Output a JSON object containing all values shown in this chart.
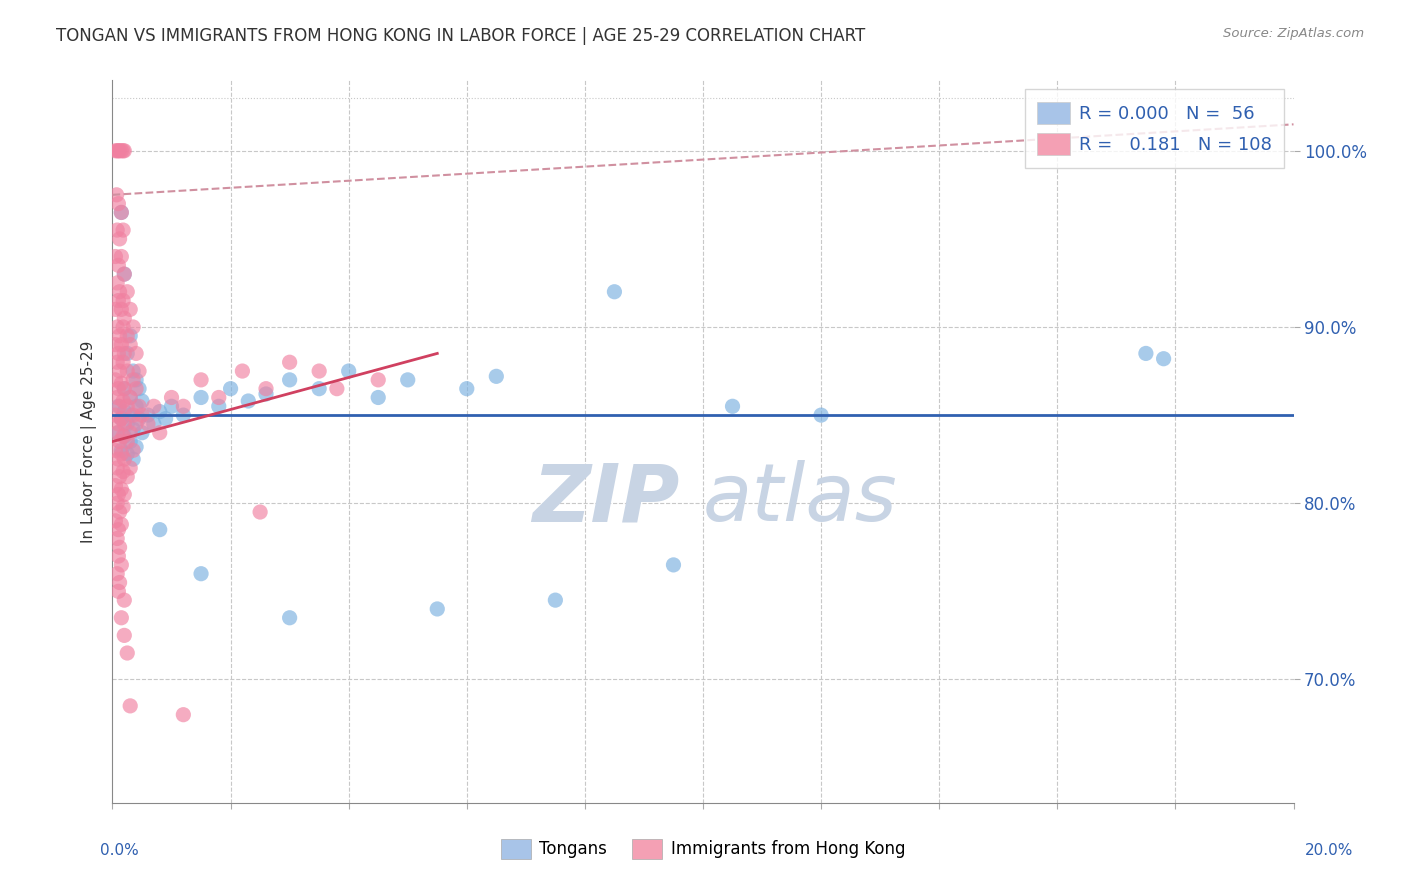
{
  "title": "TONGAN VS IMMIGRANTS FROM HONG KONG IN LABOR FORCE | AGE 25-29 CORRELATION CHART",
  "source": "Source: ZipAtlas.com",
  "ylabel": "In Labor Force | Age 25-29",
  "legend_entries": [
    {
      "label": "Tongans",
      "color": "#a8c4e8",
      "R": "0.000",
      "N": "56"
    },
    {
      "label": "Immigrants from Hong Kong",
      "color": "#f4a0b4",
      "R": "0.181",
      "N": "108"
    }
  ],
  "xmin": 0.0,
  "xmax": 20.0,
  "ymin": 63.0,
  "ymax": 104.0,
  "yticks": [
    70.0,
    80.0,
    90.0,
    100.0
  ],
  "ytick_labels": [
    "70.0%",
    "80.0%",
    "90.0%",
    "100.0%"
  ],
  "background_color": "#ffffff",
  "grid_color": "#c8c8c8",
  "scatter_blue_color": "#7ab0e0",
  "scatter_pink_color": "#f080a0",
  "trendline_blue_color": "#3060b0",
  "trendline_pink_color": "#d04060",
  "dashed_line_color": "#d090a0",
  "blue_trend_y": 85.0,
  "blue_trend_x0": 0.0,
  "blue_trend_x1": 20.0,
  "pink_trend_x0": 0.0,
  "pink_trend_y0": 83.5,
  "pink_trend_x1": 5.5,
  "pink_trend_y1": 88.5,
  "dash_x0": 0.0,
  "dash_y0": 97.5,
  "dash_x1": 20.0,
  "dash_y1": 101.5,
  "watermark_zip": "ZIP",
  "watermark_atlas": "atlas",
  "watermark_color": "#c8d4e4",
  "blue_points": [
    [
      0.15,
      96.5
    ],
    [
      0.2,
      93.0
    ],
    [
      0.3,
      89.5
    ],
    [
      0.25,
      88.5
    ],
    [
      0.35,
      87.5
    ],
    [
      0.2,
      86.5
    ],
    [
      0.3,
      86.0
    ],
    [
      0.4,
      87.0
    ],
    [
      0.45,
      86.5
    ],
    [
      0.1,
      85.5
    ],
    [
      0.2,
      85.2
    ],
    [
      0.3,
      85.0
    ],
    [
      0.4,
      85.5
    ],
    [
      0.5,
      85.8
    ],
    [
      0.15,
      84.8
    ],
    [
      0.25,
      84.5
    ],
    [
      0.35,
      84.2
    ],
    [
      0.45,
      84.8
    ],
    [
      0.1,
      84.0
    ],
    [
      0.2,
      83.8
    ],
    [
      0.3,
      83.5
    ],
    [
      0.4,
      83.2
    ],
    [
      0.5,
      84.0
    ],
    [
      0.15,
      83.0
    ],
    [
      0.25,
      82.8
    ],
    [
      0.35,
      82.5
    ],
    [
      0.6,
      85.0
    ],
    [
      0.7,
      84.5
    ],
    [
      0.8,
      85.2
    ],
    [
      0.9,
      84.8
    ],
    [
      1.0,
      85.5
    ],
    [
      1.2,
      85.0
    ],
    [
      1.5,
      86.0
    ],
    [
      1.8,
      85.5
    ],
    [
      2.0,
      86.5
    ],
    [
      2.3,
      85.8
    ],
    [
      2.6,
      86.2
    ],
    [
      3.0,
      87.0
    ],
    [
      3.5,
      86.5
    ],
    [
      4.0,
      87.5
    ],
    [
      4.5,
      86.0
    ],
    [
      5.0,
      87.0
    ],
    [
      6.0,
      86.5
    ],
    [
      6.5,
      87.2
    ],
    [
      8.5,
      92.0
    ],
    [
      0.8,
      78.5
    ],
    [
      1.5,
      76.0
    ],
    [
      3.0,
      73.5
    ],
    [
      5.5,
      74.0
    ],
    [
      7.5,
      74.5
    ],
    [
      9.5,
      76.5
    ],
    [
      10.5,
      85.5
    ],
    [
      12.0,
      85.0
    ],
    [
      17.5,
      88.5
    ],
    [
      17.8,
      88.2
    ]
  ],
  "pink_points": [
    [
      0.05,
      100.0
    ],
    [
      0.08,
      100.0
    ],
    [
      0.1,
      100.0
    ],
    [
      0.12,
      100.0
    ],
    [
      0.15,
      100.0
    ],
    [
      0.18,
      100.0
    ],
    [
      0.2,
      100.0
    ],
    [
      0.07,
      97.5
    ],
    [
      0.1,
      97.0
    ],
    [
      0.15,
      96.5
    ],
    [
      0.08,
      95.5
    ],
    [
      0.12,
      95.0
    ],
    [
      0.18,
      95.5
    ],
    [
      0.05,
      94.0
    ],
    [
      0.1,
      93.5
    ],
    [
      0.15,
      94.0
    ],
    [
      0.2,
      93.0
    ],
    [
      0.08,
      92.5
    ],
    [
      0.12,
      92.0
    ],
    [
      0.18,
      91.5
    ],
    [
      0.25,
      92.0
    ],
    [
      0.05,
      91.0
    ],
    [
      0.1,
      91.5
    ],
    [
      0.15,
      91.0
    ],
    [
      0.2,
      90.5
    ],
    [
      0.3,
      91.0
    ],
    [
      0.08,
      90.0
    ],
    [
      0.12,
      89.5
    ],
    [
      0.18,
      90.0
    ],
    [
      0.25,
      89.5
    ],
    [
      0.35,
      90.0
    ],
    [
      0.05,
      89.0
    ],
    [
      0.1,
      88.5
    ],
    [
      0.15,
      89.0
    ],
    [
      0.2,
      88.5
    ],
    [
      0.3,
      89.0
    ],
    [
      0.4,
      88.5
    ],
    [
      0.08,
      88.0
    ],
    [
      0.12,
      87.5
    ],
    [
      0.18,
      88.0
    ],
    [
      0.25,
      87.5
    ],
    [
      0.35,
      87.0
    ],
    [
      0.45,
      87.5
    ],
    [
      0.05,
      87.0
    ],
    [
      0.1,
      86.5
    ],
    [
      0.15,
      86.8
    ],
    [
      0.2,
      86.5
    ],
    [
      0.3,
      86.0
    ],
    [
      0.4,
      86.5
    ],
    [
      0.08,
      86.0
    ],
    [
      0.12,
      85.5
    ],
    [
      0.18,
      85.8
    ],
    [
      0.25,
      85.5
    ],
    [
      0.35,
      85.0
    ],
    [
      0.45,
      85.5
    ],
    [
      0.05,
      85.0
    ],
    [
      0.1,
      84.5
    ],
    [
      0.15,
      84.8
    ],
    [
      0.2,
      84.5
    ],
    [
      0.3,
      84.0
    ],
    [
      0.4,
      84.5
    ],
    [
      0.08,
      84.0
    ],
    [
      0.12,
      83.5
    ],
    [
      0.18,
      83.8
    ],
    [
      0.25,
      83.5
    ],
    [
      0.35,
      83.0
    ],
    [
      0.05,
      83.0
    ],
    [
      0.1,
      82.5
    ],
    [
      0.15,
      82.8
    ],
    [
      0.2,
      82.5
    ],
    [
      0.3,
      82.0
    ],
    [
      0.08,
      82.0
    ],
    [
      0.12,
      81.5
    ],
    [
      0.18,
      81.8
    ],
    [
      0.25,
      81.5
    ],
    [
      0.05,
      81.0
    ],
    [
      0.1,
      80.5
    ],
    [
      0.15,
      80.8
    ],
    [
      0.2,
      80.5
    ],
    [
      0.08,
      80.0
    ],
    [
      0.12,
      79.5
    ],
    [
      0.18,
      79.8
    ],
    [
      0.05,
      79.0
    ],
    [
      0.1,
      78.5
    ],
    [
      0.15,
      78.8
    ],
    [
      0.08,
      78.0
    ],
    [
      0.12,
      77.5
    ],
    [
      0.1,
      77.0
    ],
    [
      0.15,
      76.5
    ],
    [
      0.08,
      76.0
    ],
    [
      0.12,
      75.5
    ],
    [
      0.1,
      75.0
    ],
    [
      0.2,
      74.5
    ],
    [
      0.15,
      73.5
    ],
    [
      0.2,
      72.5
    ],
    [
      0.25,
      71.5
    ],
    [
      0.3,
      68.5
    ],
    [
      0.5,
      85.0
    ],
    [
      0.6,
      84.5
    ],
    [
      0.7,
      85.5
    ],
    [
      0.8,
      84.0
    ],
    [
      1.0,
      86.0
    ],
    [
      1.2,
      85.5
    ],
    [
      1.5,
      87.0
    ],
    [
      1.8,
      86.0
    ],
    [
      2.2,
      87.5
    ],
    [
      2.6,
      86.5
    ],
    [
      3.0,
      88.0
    ],
    [
      3.5,
      87.5
    ],
    [
      3.8,
      86.5
    ],
    [
      4.5,
      87.0
    ],
    [
      2.5,
      79.5
    ],
    [
      1.2,
      68.0
    ]
  ]
}
